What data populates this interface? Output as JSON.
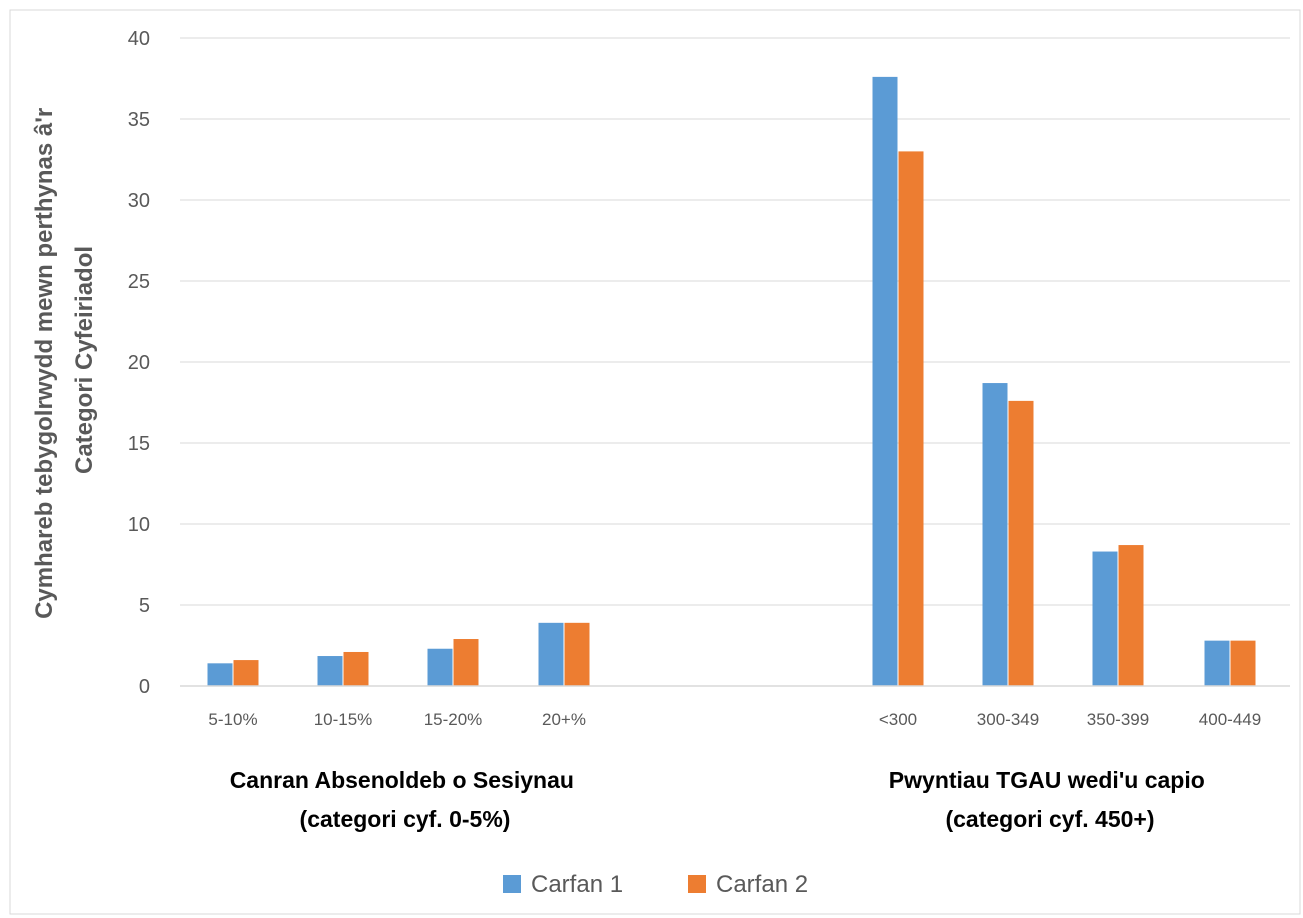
{
  "chart_data": {
    "type": "bar",
    "ylabel_lines": [
      "Cymhareb tebygolrwydd mewn perthynas â'r",
      "Categori Cyfeiriadol"
    ],
    "ylim": [
      0,
      40
    ],
    "yticks": [
      0,
      5,
      10,
      15,
      20,
      25,
      30,
      35,
      40
    ],
    "grid": true,
    "legend_position": "bottom",
    "colors": {
      "Carfan 1": "#5b9bd5",
      "Carfan 2": "#ed7d31"
    },
    "groups": [
      {
        "label_lines": [
          "Canran Absenoldeb o Sesiynau",
          "(categori cyf. 0-5%)"
        ],
        "categories": [
          "5-10%",
          "10-15%",
          "15-20%",
          "20+%"
        ]
      },
      {
        "label_lines": [
          "Pwyntiau TGAU wedi'u capio",
          "(categori cyf. 450+)"
        ],
        "categories": [
          "<300",
          "300-349",
          "350-399",
          "400-449"
        ]
      }
    ],
    "categories": [
      "5-10%",
      "10-15%",
      "15-20%",
      "20+%",
      "<300",
      "300-349",
      "350-399",
      "400-449"
    ],
    "series": [
      {
        "name": "Carfan 1",
        "values": [
          1.4,
          1.85,
          2.3,
          3.9,
          37.6,
          18.7,
          8.3,
          2.8
        ]
      },
      {
        "name": "Carfan 2",
        "values": [
          1.6,
          2.1,
          2.9,
          3.9,
          33.0,
          17.6,
          8.7,
          2.8
        ]
      }
    ]
  }
}
